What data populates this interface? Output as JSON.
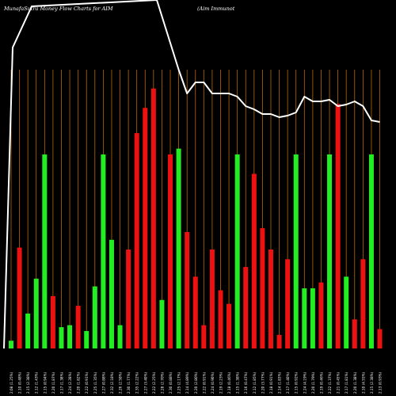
{
  "header": {
    "title": "MunafaSutra  Money Flow  Charts for AIM",
    "company": "(Aim Immunot"
  },
  "chart_data": {
    "type": "bar",
    "title": "MunafaSutra  Money Flow  Charts for AIM",
    "subtitle": "(Aim Immunot",
    "background": "#000000",
    "colors": {
      "up": "#22ee22",
      "down": "#ee1111",
      "price_line": "#ffffff",
      "grid": "#b86a00"
    },
    "categories": [
      "2.08 (1.25%)",
      "2.10 (0.48%)",
      "2.15 (2.38%)",
      "2.12 (1.43%)",
      "2.15 (0.94%)",
      "2.20 (1.87%)",
      "2.17 (1.38%)",
      "2.24 (2.28%)",
      "2.20 (1.82%)",
      "2.22 (0.91%)",
      "2.25 (1.35%)",
      "2.27 (0.88%)",
      "2.32 (2.18%)",
      "2.26 (2.58%)",
      "2.30 (1.77%)",
      "2.35 (2.22%)",
      "2.27 (3.40%)",
      "2.22 (2.25%)",
      "2.28 (2.70%)",
      "2.30 (0.88%)",
      "2.25 (2.17%)",
      "2.14 (4.89%)",
      "2.20 (2.80%)",
      "2.22 (0.91%)",
      "2.24 (0.90%)",
      "2.19 (2.23%)",
      "2.18 (0.46%)",
      "2.15 (1.38%)",
      "2.16 (0.47%)",
      "2.12 (1.85%)",
      "2.20 (3.77%)",
      "2.18 (0.91%)",
      "2.14 (1.83%)",
      "2.17 (1.40%)",
      "2.15 (0.92%)",
      "2.24 (4.19%)",
      "2.20 (1.79%)",
      "2.19 (0.46%)",
      "2.22 (1.37%)",
      "2.21 (0.45%)",
      "2.17 (1.81%)",
      "2.20 (1.38%)",
      "2.10 (4.55%)",
      "2.15 (2.38%)",
      "2.13 (0.93%)"
    ],
    "series": [
      {
        "type": "bar",
        "values": [
          4,
          52,
          18,
          36,
          100,
          27,
          11,
          12,
          22,
          9,
          32,
          100,
          56,
          12,
          51,
          111,
          124,
          134,
          25,
          100,
          103,
          60,
          37,
          12,
          51,
          30,
          23,
          100,
          42,
          90,
          62,
          51,
          7,
          46,
          100,
          31,
          31,
          34,
          100,
          126,
          37,
          15,
          46,
          100,
          10
        ],
        "directions": [
          "up",
          "down",
          "up",
          "up",
          "up",
          "down",
          "up",
          "up",
          "down",
          "up",
          "up",
          "up",
          "up",
          "up",
          "down",
          "down",
          "down",
          "down",
          "up",
          "down",
          "up",
          "down",
          "down",
          "down",
          "down",
          "down",
          "down",
          "up",
          "down",
          "down",
          "down",
          "down",
          "down",
          "down",
          "up",
          "up",
          "up",
          "down",
          "up",
          "down",
          "up",
          "down",
          "down",
          "up",
          "down"
        ],
        "values_clipped_at_top": true
      },
      {
        "type": "line",
        "values": [
          100,
          100,
          100,
          100,
          100,
          100,
          100,
          100,
          100,
          100,
          100,
          100,
          100,
          100,
          100,
          100,
          100,
          100,
          100,
          100,
          60,
          45,
          52,
          52,
          45,
          45,
          45,
          43,
          37,
          35,
          32,
          32,
          30,
          31,
          33,
          43,
          40,
          40,
          41,
          37,
          38,
          40,
          37,
          28,
          27
        ]
      }
    ],
    "grid": true
  }
}
